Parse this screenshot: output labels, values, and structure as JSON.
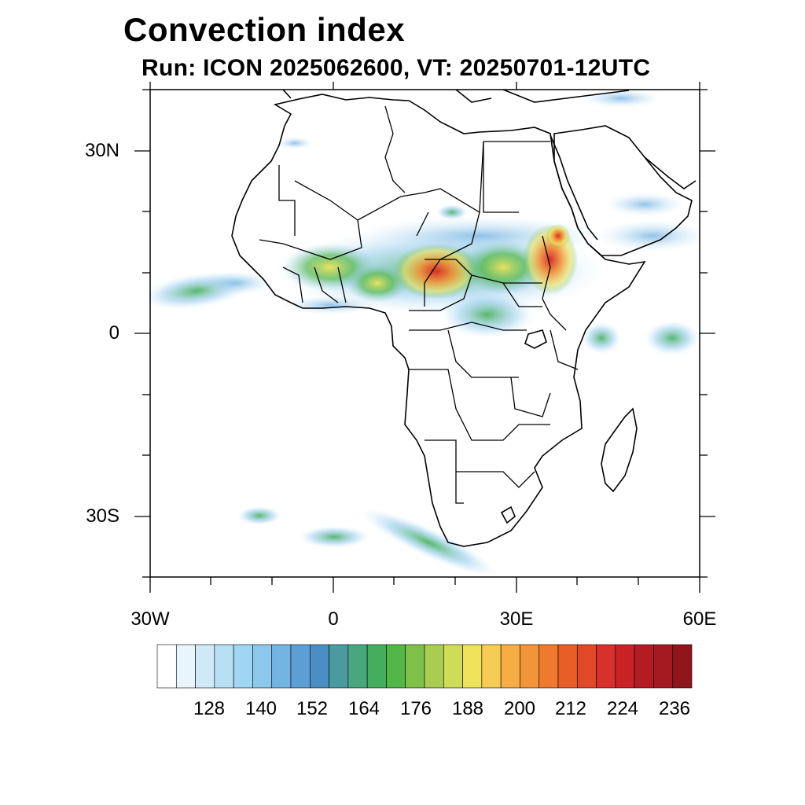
{
  "title": "Convection index",
  "subtitle": "Run: ICON 2025062600,  VT: 20250701-12UTC",
  "map": {
    "lon_range": [
      -30,
      60
    ],
    "lat_range": [
      -40,
      40
    ],
    "lat_labels": [
      "30N",
      "0",
      "30S"
    ],
    "lon_labels": [
      "30W",
      "0",
      "30E",
      "60E"
    ]
  },
  "colorbar": {
    "labels": [
      "128",
      "140",
      "152",
      "164",
      "176",
      "188",
      "200",
      "212",
      "224",
      "236"
    ],
    "colors": [
      "#ffffff",
      "#e8f5fc",
      "#cfe9f7",
      "#b8e0f5",
      "#a0d6f2",
      "#8cc8ec",
      "#74b4e2",
      "#5d9fd4",
      "#4a8ec4",
      "#4a9aa0",
      "#48a77e",
      "#45ae5c",
      "#52b748",
      "#7ec04a",
      "#a8cd50",
      "#d0db58",
      "#eee35a",
      "#f6cc55",
      "#f6ad45",
      "#f29538",
      "#ee7a2d",
      "#e85e26",
      "#e14828",
      "#d8302a",
      "#c92127",
      "#b41c24",
      "#a51a21",
      "#8f161b"
    ]
  }
}
